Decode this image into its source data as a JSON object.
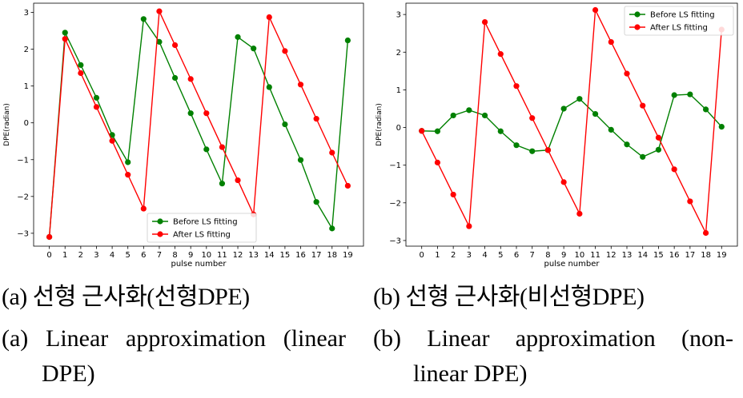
{
  "chart_data": [
    {
      "type": "line",
      "x": [
        0,
        1,
        2,
        3,
        4,
        5,
        6,
        7,
        8,
        9,
        10,
        11,
        12,
        13,
        14,
        15,
        16,
        17,
        18,
        19
      ],
      "xlabel": "pulse number",
      "ylabel": "DPE(radian)",
      "xlim": [
        -1,
        20
      ],
      "ylim": [
        -3.35,
        3.25
      ],
      "yticks": [
        -3,
        -2,
        -1,
        0,
        1,
        2,
        3
      ],
      "legend": "bottom-center",
      "grid": false,
      "series": [
        {
          "name": "Before LS fitting",
          "color": "#008000",
          "values": [
            -3.1,
            2.45,
            1.57,
            0.68,
            -0.33,
            -1.07,
            2.82,
            2.2,
            1.22,
            0.26,
            -0.72,
            -1.65,
            2.33,
            2.02,
            0.97,
            -0.04,
            -1.01,
            -2.15,
            -2.87,
            2.24
          ]
        },
        {
          "name": "After LS fitting",
          "color": "#ff0000",
          "values": [
            -3.1,
            2.28,
            1.35,
            0.43,
            -0.49,
            -1.41,
            -2.33,
            3.03,
            2.11,
            1.19,
            0.26,
            -0.66,
            -1.56,
            -2.49,
            2.87,
            1.95,
            1.04,
            0.11,
            -0.81,
            -1.71
          ]
        }
      ]
    },
    {
      "type": "line",
      "x": [
        0,
        1,
        2,
        3,
        4,
        5,
        6,
        7,
        8,
        9,
        10,
        11,
        12,
        13,
        14,
        15,
        16,
        17,
        18,
        19
      ],
      "xlabel": "pulse number",
      "ylabel": "DPE(radian)",
      "xlim": [
        -1,
        20
      ],
      "ylim": [
        -3.15,
        3.3
      ],
      "yticks": [
        -3,
        -2,
        -1,
        0,
        1,
        2,
        3
      ],
      "legend": "top-right",
      "grid": false,
      "series": [
        {
          "name": "Before LS fitting",
          "color": "#008000",
          "values": [
            -0.09,
            -0.1,
            0.32,
            0.46,
            0.32,
            -0.1,
            -0.47,
            -0.63,
            -0.6,
            0.5,
            0.76,
            0.36,
            -0.06,
            -0.45,
            -0.78,
            -0.59,
            0.86,
            0.88,
            0.48,
            0.02
          ]
        },
        {
          "name": "After LS fitting",
          "color": "#ff0000",
          "values": [
            -0.09,
            -0.93,
            -1.78,
            -2.62,
            2.8,
            1.95,
            1.1,
            0.25,
            -0.6,
            -1.45,
            -2.29,
            3.12,
            2.27,
            1.43,
            0.58,
            -0.27,
            -1.11,
            -1.96,
            -2.8,
            2.6
          ]
        }
      ]
    }
  ],
  "captions": {
    "a_ko": "(a) 선형  근사화(선형DPE)",
    "b_ko": "(b) 선형  근사화(비선형DPE)",
    "a_en_1": "(a)  Linear  approximation  (linear",
    "a_en_2": "DPE)",
    "b_en_1": "(b)  Linear  approximation  (non-",
    "b_en_2": "linear  DPE)"
  }
}
